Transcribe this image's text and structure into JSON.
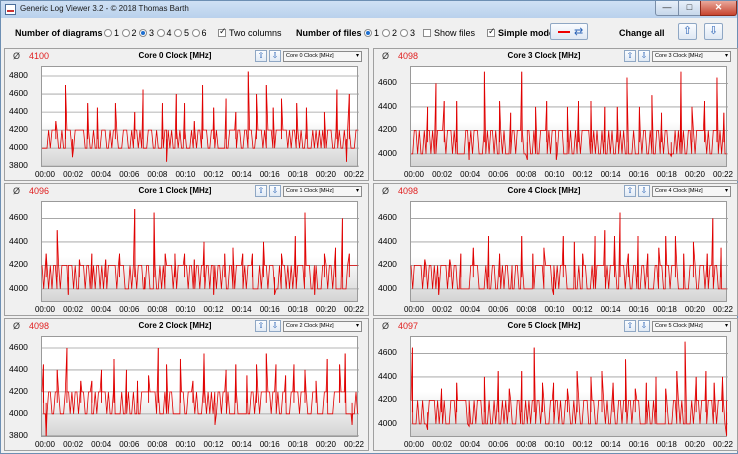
{
  "window": {
    "title": "Generic Log Viewer 3.2 - © 2018 Thomas Barth",
    "minimize": "—",
    "maximize": "□",
    "close": "✕"
  },
  "toolbar": {
    "diagrams_label": "Number of diagrams",
    "diagram_options": [
      "1",
      "2",
      "3",
      "4",
      "5",
      "6"
    ],
    "diagram_selected": "3",
    "two_columns_label": "Two columns",
    "two_columns_checked": true,
    "files_label": "Number of files",
    "file_options": [
      "1",
      "2",
      "3"
    ],
    "file_selected": "1",
    "show_files_label": "Show files",
    "show_files_checked": false,
    "simple_mode_label": "Simple mode",
    "simple_mode_checked": true,
    "change_all_label": "Change all",
    "line_color": "#e00000",
    "up_icon": "⇧",
    "down_icon": "⇩"
  },
  "avg_symbol": "Ø",
  "select_arrow": "▾",
  "x_ticks": [
    "00:00",
    "00:02",
    "00:04",
    "00:06",
    "00:08",
    "00:10",
    "00:12",
    "00:14",
    "00:16",
    "00:18",
    "00:20",
    "00:22"
  ],
  "chart_data": [
    {
      "type": "line",
      "title": "Core 0 Clock [MHz]",
      "average": "4100",
      "selector": "Core 0 Clock [MHz]",
      "ylim": [
        3780,
        4900
      ],
      "yticks": [
        3800,
        4000,
        4200,
        4400,
        4600,
        4800
      ],
      "x_range": [
        0,
        22.9
      ],
      "baseline": 4100,
      "spikes": [
        [
          1,
          4300
        ],
        [
          1.7,
          4700
        ],
        [
          2.2,
          3900
        ],
        [
          3.3,
          4500
        ],
        [
          4,
          4450
        ],
        [
          5.3,
          4500
        ],
        [
          6.7,
          4400
        ],
        [
          7.3,
          4650
        ],
        [
          8.7,
          4500
        ],
        [
          9,
          3850
        ],
        [
          9.7,
          4600
        ],
        [
          10.3,
          4500
        ],
        [
          11,
          4300
        ],
        [
          11.6,
          4700
        ],
        [
          12.4,
          4450
        ],
        [
          13.3,
          4550
        ],
        [
          14,
          4400
        ],
        [
          14.9,
          4850
        ],
        [
          15.5,
          4600
        ],
        [
          16.2,
          4700
        ],
        [
          16.7,
          4450
        ],
        [
          17.3,
          4550
        ],
        [
          18.4,
          4500
        ],
        [
          19.1,
          4450
        ],
        [
          20.4,
          4400
        ],
        [
          21.3,
          4650
        ],
        [
          22,
          3850
        ],
        [
          22.2,
          4600
        ]
      ]
    },
    {
      "type": "line",
      "title": "Core 3 Clock [MHz]",
      "average": "4098",
      "selector": "Core 3 Clock [MHz]",
      "ylim": [
        3880,
        4740
      ],
      "yticks": [
        4000,
        4200,
        4400,
        4600
      ],
      "x_range": [
        0,
        22.9
      ],
      "baseline": 4100,
      "spikes": [
        [
          1.2,
          4400
        ],
        [
          1.8,
          4600
        ],
        [
          2.4,
          4450
        ],
        [
          3.3,
          4450
        ],
        [
          4.2,
          3950
        ],
        [
          5.3,
          4700
        ],
        [
          6.4,
          4450
        ],
        [
          7.2,
          4350
        ],
        [
          8,
          4700
        ],
        [
          8.4,
          3950
        ],
        [
          9,
          4400
        ],
        [
          9.8,
          4450
        ],
        [
          10.5,
          3950
        ],
        [
          11.3,
          4400
        ],
        [
          12.1,
          4450
        ],
        [
          13,
          4450
        ],
        [
          14,
          4400
        ],
        [
          14.9,
          4400
        ],
        [
          15.6,
          4650
        ],
        [
          16.5,
          4400
        ],
        [
          17.4,
          4500
        ],
        [
          18.1,
          4350
        ],
        [
          18.8,
          3980
        ],
        [
          19.5,
          4700
        ],
        [
          20.3,
          4400
        ],
        [
          21.2,
          4450
        ],
        [
          22.1,
          4650
        ],
        [
          22.6,
          4350
        ]
      ]
    },
    {
      "type": "line",
      "title": "Core 1 Clock [MHz]",
      "average": "4096",
      "selector": "Core 1 Clock [MHz]",
      "ylim": [
        3880,
        4740
      ],
      "yticks": [
        4000,
        4200,
        4400,
        4600
      ],
      "x_range": [
        0,
        22.9
      ],
      "baseline": 4100,
      "spikes": [
        [
          0.3,
          4300
        ],
        [
          1.1,
          4500
        ],
        [
          1.9,
          3950
        ],
        [
          2.7,
          4250
        ],
        [
          3.6,
          4300
        ],
        [
          4.6,
          4250
        ],
        [
          5.6,
          4300
        ],
        [
          6.7,
          4680
        ],
        [
          7.4,
          4000
        ],
        [
          8.1,
          4650
        ],
        [
          8.9,
          4300
        ],
        [
          9.6,
          4300
        ],
        [
          10.3,
          4300
        ],
        [
          11,
          4250
        ],
        [
          11.7,
          4400
        ],
        [
          12.4,
          3950
        ],
        [
          13.2,
          4300
        ],
        [
          13.8,
          4350
        ],
        [
          14.5,
          4300
        ],
        [
          15.2,
          4300
        ],
        [
          16,
          4400
        ],
        [
          16.8,
          3950
        ],
        [
          17.3,
          4300
        ],
        [
          18.3,
          4450
        ],
        [
          19,
          4650
        ],
        [
          19.7,
          3950
        ],
        [
          20.4,
          4300
        ],
        [
          21.2,
          4350
        ],
        [
          21.7,
          4600
        ],
        [
          22.2,
          4300
        ]
      ]
    },
    {
      "type": "line",
      "title": "Core 4 Clock [MHz]",
      "average": "4098",
      "selector": "Core 4 Clock [MHz]",
      "ylim": [
        3880,
        4740
      ],
      "yticks": [
        4000,
        4200,
        4400,
        4600
      ],
      "x_range": [
        0,
        22.9
      ],
      "baseline": 4100,
      "spikes": [
        [
          1,
          4250
        ],
        [
          2,
          3950
        ],
        [
          2.8,
          4250
        ],
        [
          3.6,
          4300
        ],
        [
          4.5,
          4350
        ],
        [
          5.6,
          4450
        ],
        [
          6.4,
          4300
        ],
        [
          7.3,
          4200
        ],
        [
          8,
          4450
        ],
        [
          8.8,
          4300
        ],
        [
          9.6,
          4350
        ],
        [
          10.3,
          3950
        ],
        [
          11,
          4450
        ],
        [
          11.8,
          4400
        ],
        [
          12.4,
          4300
        ],
        [
          13.3,
          4450
        ],
        [
          14,
          4500
        ],
        [
          14.7,
          4450
        ],
        [
          15.1,
          4650
        ],
        [
          15.7,
          4300
        ],
        [
          16.4,
          4450
        ],
        [
          17.1,
          4300
        ],
        [
          17.9,
          4350
        ],
        [
          18.4,
          4450
        ],
        [
          19.1,
          4450
        ],
        [
          19.7,
          4300
        ],
        [
          20.4,
          4400
        ],
        [
          21.4,
          4300
        ],
        [
          21.8,
          4600
        ],
        [
          22.4,
          4350
        ]
      ]
    },
    {
      "type": "line",
      "title": "Core 2 Clock [MHz]",
      "average": "4098",
      "selector": "Core 2 Clock [MHz]",
      "ylim": [
        3780,
        4700
      ],
      "yticks": [
        3800,
        4000,
        4200,
        4400,
        4600
      ],
      "x_range": [
        0,
        22.9
      ],
      "baseline": 4100,
      "spikes": [
        [
          0.1,
          4450
        ],
        [
          0.3,
          3800
        ],
        [
          1.1,
          4400
        ],
        [
          1.8,
          4600
        ],
        [
          2.8,
          4300
        ],
        [
          3.6,
          4300
        ],
        [
          4.3,
          4400
        ],
        [
          5.2,
          4500
        ],
        [
          6.1,
          4400
        ],
        [
          6.9,
          4300
        ],
        [
          7.7,
          4350
        ],
        [
          8.4,
          4600
        ],
        [
          9,
          4450
        ],
        [
          10,
          4500
        ],
        [
          10.9,
          4300
        ],
        [
          11.7,
          4550
        ],
        [
          12.5,
          3900
        ],
        [
          13.3,
          4400
        ],
        [
          14,
          4450
        ],
        [
          14.8,
          4350
        ],
        [
          15.5,
          4450
        ],
        [
          16.2,
          4550
        ],
        [
          16.9,
          4450
        ],
        [
          17.6,
          4350
        ],
        [
          18.2,
          4450
        ],
        [
          19,
          4400
        ],
        [
          19.8,
          4300
        ],
        [
          20.6,
          4500
        ],
        [
          21.5,
          4450
        ],
        [
          21.9,
          4550
        ],
        [
          22.4,
          3900
        ]
      ]
    },
    {
      "type": "line",
      "title": "Core 5 Clock [MHz]",
      "average": "4097",
      "selector": "Core 5 Clock [MHz]",
      "ylim": [
        3880,
        4740
      ],
      "yticks": [
        4000,
        4200,
        4400,
        4600
      ],
      "x_range": [
        0,
        22.9
      ],
      "baseline": 4100,
      "spikes": [
        [
          0.1,
          4650
        ],
        [
          1.2,
          3950
        ],
        [
          2.2,
          4300
        ],
        [
          3.3,
          4350
        ],
        [
          4.2,
          3980
        ],
        [
          5.3,
          4400
        ],
        [
          6.3,
          4450
        ],
        [
          7.1,
          4300
        ],
        [
          8,
          4450
        ],
        [
          8.9,
          4650
        ],
        [
          9.5,
          4350
        ],
        [
          10.3,
          4350
        ],
        [
          11.3,
          4300
        ],
        [
          12,
          4450
        ],
        [
          13,
          4400
        ],
        [
          13.8,
          4450
        ],
        [
          14.6,
          4350
        ],
        [
          15.5,
          4550
        ],
        [
          16.2,
          4300
        ],
        [
          17,
          4350
        ],
        [
          17.7,
          4400
        ],
        [
          18.4,
          4300
        ],
        [
          19.2,
          4450
        ],
        [
          19.8,
          4700
        ],
        [
          20.6,
          4400
        ],
        [
          21.3,
          4450
        ],
        [
          21.9,
          4350
        ],
        [
          22.5,
          4400
        ],
        [
          22.8,
          3900
        ]
      ]
    }
  ]
}
